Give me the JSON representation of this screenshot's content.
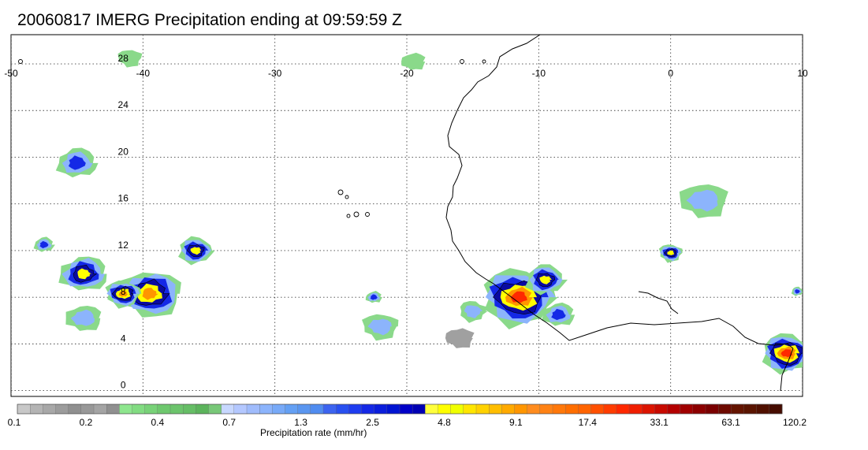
{
  "title": "20060817 IMERG Precipitation ending at 09:59:59 Z",
  "lon_ticks": [
    -50,
    -40,
    -30,
    -20,
    -10,
    0,
    10
  ],
  "lat_ticks": [
    0,
    4,
    8,
    12,
    16,
    20,
    24,
    28
  ],
  "lon_range": [
    -50,
    10
  ],
  "lat_range": [
    -0.5,
    30.5
  ],
  "colorbar": {
    "title": "Precipitation rate (mm/hr)",
    "tick_labels": [
      "0.1",
      "0.2",
      "0.4",
      "0.7",
      "1.3",
      "2.5",
      "4.8",
      "9.1",
      "17.4",
      "33.1",
      "63.1",
      "120.2"
    ],
    "colors": [
      "#c8c8c8",
      "#b4b4b4",
      "#a8a8a8",
      "#9c9c9c",
      "#909090",
      "#989898",
      "#a4a4a4",
      "#909090",
      "#8ee68e",
      "#82dc82",
      "#78d278",
      "#6ec86e",
      "#6cc46c",
      "#66be66",
      "#5cb45c",
      "#78c878",
      "#c8d8ff",
      "#b4c8ff",
      "#a0bcfc",
      "#8cb4fc",
      "#78aaf8",
      "#64a0f4",
      "#5a96f0",
      "#508cf0",
      "#3c64f0",
      "#2850f0",
      "#1e3cf0",
      "#1428e6",
      "#0a1edc",
      "#0014d2",
      "#0000c8",
      "#0000b4",
      "#ffff3c",
      "#ffff00",
      "#f0ff00",
      "#ffe600",
      "#ffd200",
      "#ffbe00",
      "#ffaa00",
      "#ff9600",
      "#ff8c1e",
      "#ff8214",
      "#ff780a",
      "#ff6e00",
      "#ff6400",
      "#ff5000",
      "#ff3c00",
      "#ff2800",
      "#f01e00",
      "#dc1400",
      "#c80a00",
      "#b40000",
      "#a00000",
      "#8c0000",
      "#7a0000",
      "#6e0a00",
      "#641400",
      "#5a1400",
      "#501000",
      "#460c00"
    ]
  },
  "map_style": {
    "grid": true,
    "coastline_color": "#000000",
    "storm_colors": {
      "gray": "#a0a0a0",
      "green": "#8ad98a",
      "lightblue": "#8cb4fc",
      "blue": "#1428e6",
      "darkblue": "#0a0aa0",
      "yellow": "#ffff00",
      "orange": "#ff9600",
      "red": "#ff2800"
    }
  },
  "storms": [
    {
      "lon": -44.5,
      "lat": 10.0,
      "size": 1.2,
      "max": "yellow"
    },
    {
      "lon": -39.5,
      "lat": 8.3,
      "size": 1.6,
      "max": "orange"
    },
    {
      "lon": -41.5,
      "lat": 8.3,
      "size": 0.9,
      "max": "orange"
    },
    {
      "lon": -36.0,
      "lat": 12.0,
      "size": 0.9,
      "max": "yellow"
    },
    {
      "lon": -45.0,
      "lat": 19.5,
      "size": 1.0,
      "max": "blue"
    },
    {
      "lon": -44.5,
      "lat": 6.2,
      "size": 0.9,
      "max": "lightblue"
    },
    {
      "lon": -22.0,
      "lat": 5.5,
      "size": 0.9,
      "max": "lightblue"
    },
    {
      "lon": -11.5,
      "lat": 8.0,
      "size": 1.9,
      "max": "red"
    },
    {
      "lon": -9.5,
      "lat": 9.5,
      "size": 1.0,
      "max": "yellow"
    },
    {
      "lon": -8.5,
      "lat": 6.5,
      "size": 0.8,
      "max": "blue"
    },
    {
      "lon": 2.5,
      "lat": 16.3,
      "size": 1.2,
      "max": "lightblue"
    },
    {
      "lon": 0.0,
      "lat": 11.8,
      "size": 0.6,
      "max": "yellow"
    },
    {
      "lon": 8.8,
      "lat": 3.2,
      "size": 1.3,
      "max": "red"
    },
    {
      "lon": -47.5,
      "lat": 12.5,
      "size": 0.5,
      "max": "blue"
    },
    {
      "lon": -19.5,
      "lat": 28.2,
      "size": 0.6,
      "max": "green"
    },
    {
      "lon": -41.0,
      "lat": 28.5,
      "size": 0.6,
      "max": "green"
    },
    {
      "lon": -15.0,
      "lat": 6.8,
      "size": 0.7,
      "max": "lightblue"
    },
    {
      "lon": 9.6,
      "lat": 8.5,
      "size": 0.3,
      "max": "blue"
    },
    {
      "lon": -22.5,
      "lat": 8.0,
      "size": 0.4,
      "max": "blue"
    },
    {
      "lon": -16.0,
      "lat": 4.5,
      "size": 0.7,
      "max": "gray"
    }
  ]
}
